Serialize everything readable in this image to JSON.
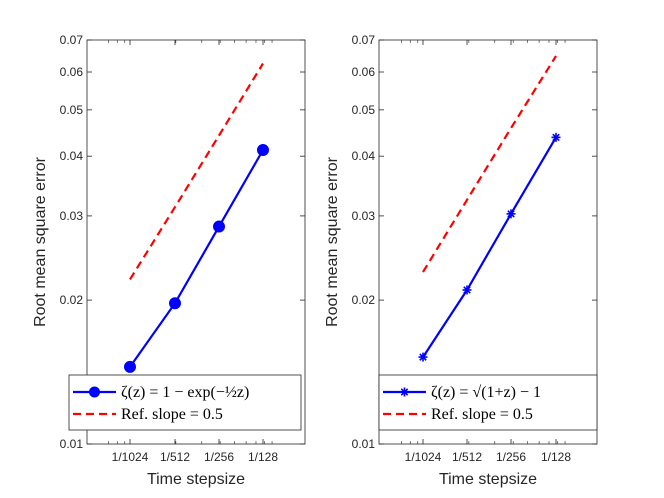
{
  "chart_data": [
    {
      "type": "line",
      "yscale": "log",
      "xscale": "log",
      "xlabel": "Time stepsize",
      "ylabel": "Root mean square error",
      "x_tick_labels": [
        "1/1024",
        "1/512",
        "1/256",
        "1/128"
      ],
      "x_values": [
        0.0009765625,
        0.001953125,
        0.00390625,
        0.0078125
      ],
      "y_ticks": [
        0.01,
        0.02,
        0.03,
        0.04,
        0.05,
        0.06,
        0.07
      ],
      "y_tick_labels": [
        "0.01",
        "0.02",
        "0.03",
        "0.04",
        "0.05",
        "0.06",
        "0.07"
      ],
      "ylim": [
        0.01,
        0.07
      ],
      "series": [
        {
          "name": "ζ(z) = 1 − exp(−½z)",
          "values": [
            0.0145,
            0.0197,
            0.0285,
            0.0412
          ],
          "color": "#0000ff",
          "marker": "circle",
          "style": "solid"
        },
        {
          "name": "Ref. slope = 0.5",
          "values": [
            0.0221,
            0.0313,
            0.0442,
            0.0625
          ],
          "color": "#ff0000",
          "marker": "none",
          "style": "dashed"
        }
      ],
      "legend": {
        "position": "bottom",
        "entries": [
          "ζ(z) = 1 − exp(−½z)",
          "Ref.  slope = 0.5"
        ]
      }
    },
    {
      "type": "line",
      "yscale": "log",
      "xscale": "log",
      "xlabel": "Time stepsize",
      "ylabel": "Root mean square error",
      "x_tick_labels": [
        "1/1024",
        "1/512",
        "1/256",
        "1/128"
      ],
      "x_values": [
        0.0009765625,
        0.001953125,
        0.00390625,
        0.0078125
      ],
      "y_ticks": [
        0.01,
        0.02,
        0.03,
        0.04,
        0.05,
        0.06,
        0.07
      ],
      "y_tick_labels": [
        "0.01",
        "0.02",
        "0.03",
        "0.04",
        "0.05",
        "0.06",
        "0.07"
      ],
      "ylim": [
        0.01,
        0.07
      ],
      "series": [
        {
          "name": "ζ(z) = √(1+z) − 1",
          "values": [
            0.0152,
            0.021,
            0.0303,
            0.0438
          ],
          "color": "#0000ff",
          "marker": "star",
          "style": "solid"
        },
        {
          "name": "Ref. slope = 0.5",
          "values": [
            0.0229,
            0.0324,
            0.0458,
            0.0648
          ],
          "color": "#ff0000",
          "marker": "none",
          "style": "dashed"
        }
      ],
      "legend": {
        "position": "bottom",
        "entries": [
          "ζ(z) = √(1+z) − 1",
          "Ref.  slope = 0.5"
        ]
      }
    }
  ]
}
